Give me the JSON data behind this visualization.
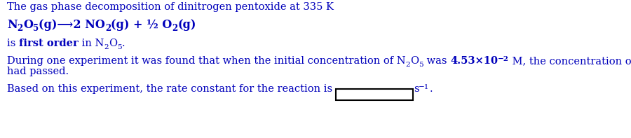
{
  "line1": "The gas phase decomposition of dinitrogen pentoxide at 335 K",
  "eq_text": "N",
  "line3_normal1": "is ",
  "line3_bold": "first order",
  "line3_normal2": " in N",
  "line4a": "During one experiment it was found that when the initial concentration of N",
  "line4b": "had passed.",
  "line5_before": "Based on this experiment, the rate constant for the reaction is ",
  "text_color": "#0000bb",
  "bg_color": "#ffffff",
  "font_size": 10.5,
  "font_family": "DejaVu Serif"
}
